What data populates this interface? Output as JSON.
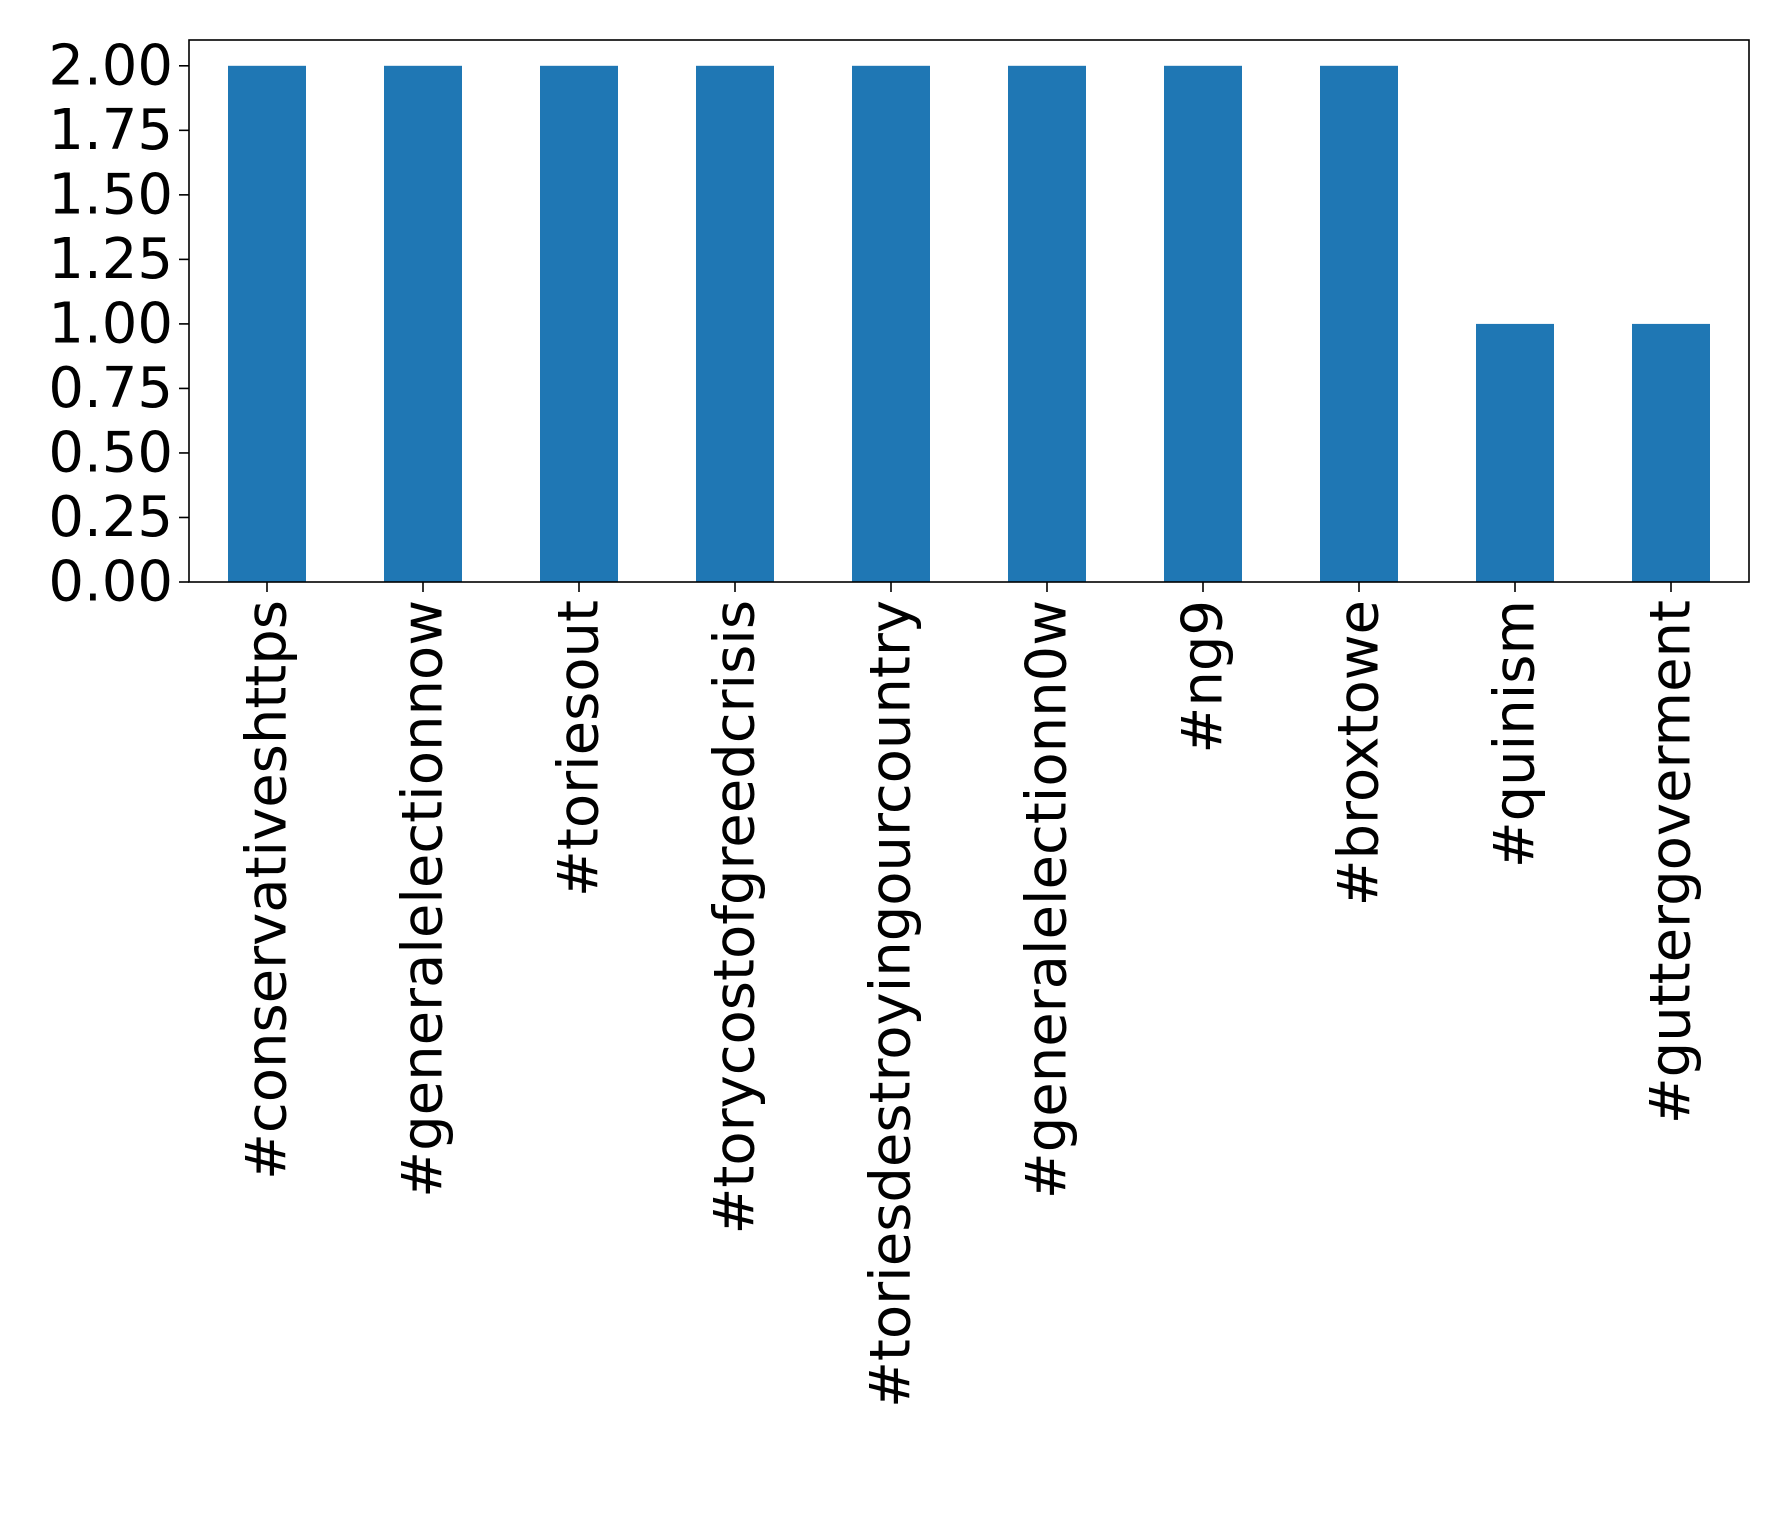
{
  "chart_data": {
    "type": "bar",
    "title": "",
    "xlabel": "",
    "ylabel": "",
    "categories": [
      "#conservativeshttps",
      "#generalelectionnow",
      "#toriesout",
      "#torycostofgreedcrisis",
      "#toriesdestroyingourcountry",
      "#generalelectionn0w",
      "#ng9",
      "#broxtowe",
      "#quinism",
      "#guttergoverment"
    ],
    "values": [
      2,
      2,
      2,
      2,
      2,
      2,
      2,
      2,
      1,
      1
    ],
    "ylim": [
      0,
      2.1
    ],
    "yticks": [
      0.0,
      0.25,
      0.5,
      0.75,
      1.0,
      1.25,
      1.5,
      1.75,
      2.0
    ],
    "ytick_labels": [
      "0.00",
      "0.25",
      "0.50",
      "0.75",
      "1.00",
      "1.25",
      "1.50",
      "1.75",
      "2.00"
    ],
    "bar_color": "#1f77b4",
    "grid": false,
    "legend": "none"
  }
}
